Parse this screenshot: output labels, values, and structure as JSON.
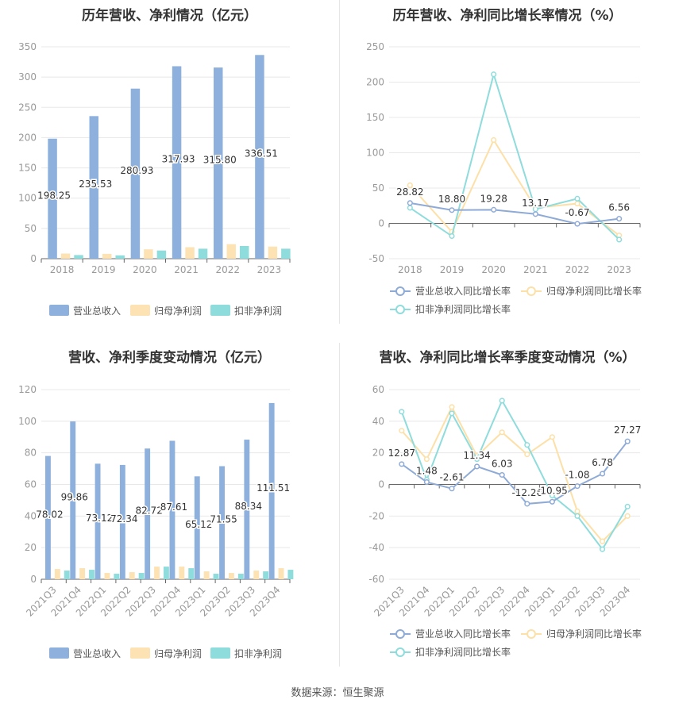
{
  "source": "数据来源：恒生聚源",
  "colors": {
    "revenue": "#8eb0dc",
    "parent": "#fde3b4",
    "deducted": "#8fdcdc",
    "grid": "#e8e8e8",
    "axis": "#999999",
    "label": "#333333"
  },
  "chart_data": [
    {
      "type": "bar",
      "title": "历年营收、净利情况（亿元）",
      "categories": [
        "2018",
        "2019",
        "2020",
        "2021",
        "2022",
        "2023"
      ],
      "ylim": [
        0,
        350
      ],
      "yticks": [
        0,
        50,
        100,
        150,
        200,
        250,
        300,
        350
      ],
      "series": [
        {
          "name": "营业总收入",
          "values": [
            198.25,
            235.53,
            280.93,
            317.93,
            315.8,
            336.51
          ],
          "labels": [
            "198.25",
            "235.53",
            "280.93",
            "317.93",
            "315.80",
            "336.51"
          ]
        },
        {
          "name": "归母净利润",
          "values": [
            8.5,
            8.0,
            15.5,
            19.0,
            24.0,
            20.0
          ]
        },
        {
          "name": "扣非净利润",
          "values": [
            6.0,
            5.5,
            13.5,
            16.5,
            21.0,
            16.5
          ]
        }
      ],
      "legend": "bottom"
    },
    {
      "type": "line",
      "title": "历年营收、净利同比增长率情况（%）",
      "categories": [
        "2018",
        "2019",
        "2020",
        "2021",
        "2022",
        "2023"
      ],
      "ylim": [
        -50,
        250
      ],
      "yticks": [
        -50,
        0,
        50,
        100,
        150,
        200,
        250
      ],
      "series": [
        {
          "name": "营业总收入同比增长率",
          "values": [
            28.82,
            18.8,
            19.28,
            13.17,
            -0.67,
            6.56
          ],
          "labels": [
            "28.82",
            "18.80",
            "19.28",
            "13.17",
            "-0.67",
            "6.56"
          ]
        },
        {
          "name": "归母净利润同比增长率",
          "values": [
            54,
            -12,
            118,
            22,
            28,
            -17
          ]
        },
        {
          "name": "扣非净利润同比增长率",
          "values": [
            22,
            -18,
            211,
            20,
            35,
            -23
          ]
        }
      ],
      "legend": "bottom"
    },
    {
      "type": "bar",
      "title": "营收、净利季度变动情况（亿元）",
      "categories": [
        "2021Q3",
        "2021Q4",
        "2022Q1",
        "2022Q2",
        "2022Q3",
        "2022Q4",
        "2023Q1",
        "2023Q2",
        "2023Q3",
        "2023Q4"
      ],
      "ylim": [
        0,
        120
      ],
      "yticks": [
        0,
        20,
        40,
        60,
        80,
        100,
        120
      ],
      "series": [
        {
          "name": "营业总收入",
          "values": [
            78.02,
            99.86,
            73.12,
            72.34,
            82.72,
            87.61,
            65.12,
            71.55,
            88.34,
            111.51
          ],
          "labels": [
            "78.02",
            "99.86",
            "73.12",
            "72.34",
            "82.72",
            "87.61",
            "65.12",
            "71.55",
            "88.34",
            "111.51"
          ]
        },
        {
          "name": "归母净利润",
          "values": [
            6.5,
            7.0,
            4.0,
            4.5,
            8.0,
            8.0,
            5.0,
            4.0,
            5.5,
            7.0
          ]
        },
        {
          "name": "扣非净利润",
          "values": [
            5.5,
            6.0,
            3.5,
            4.0,
            8.0,
            7.0,
            3.5,
            3.5,
            5.0,
            6.0
          ]
        }
      ],
      "legend": "bottom"
    },
    {
      "type": "line",
      "title": "营收、净利同比增长率季度变动情况（%）",
      "categories": [
        "2021Q3",
        "2021Q4",
        "2022Q1",
        "2022Q2",
        "2022Q3",
        "2022Q4",
        "2023Q1",
        "2023Q2",
        "2023Q3",
        "2023Q4"
      ],
      "ylim": [
        -60,
        60
      ],
      "yticks": [
        -60,
        -40,
        -20,
        0,
        20,
        40,
        60
      ],
      "series": [
        {
          "name": "营业总收入同比增长率",
          "values": [
            12.87,
            1.48,
            -2.61,
            11.34,
            6.03,
            -12.26,
            -10.95,
            -1.08,
            6.78,
            27.27
          ],
          "labels": [
            "12.87",
            "1.48",
            "-2.61",
            "11.34",
            "6.03",
            "-12.26",
            "-10.95",
            "-1.08",
            "6.78",
            "27.27"
          ]
        },
        {
          "name": "归母净利润同比增长率",
          "values": [
            34,
            16,
            49,
            18,
            33,
            19,
            30,
            -17,
            -36,
            -20
          ]
        },
        {
          "name": "扣非净利润同比增长率",
          "values": [
            46,
            3,
            45,
            16,
            53,
            25,
            -7,
            -20,
            -41,
            -14
          ]
        }
      ],
      "legend": "bottom"
    }
  ]
}
